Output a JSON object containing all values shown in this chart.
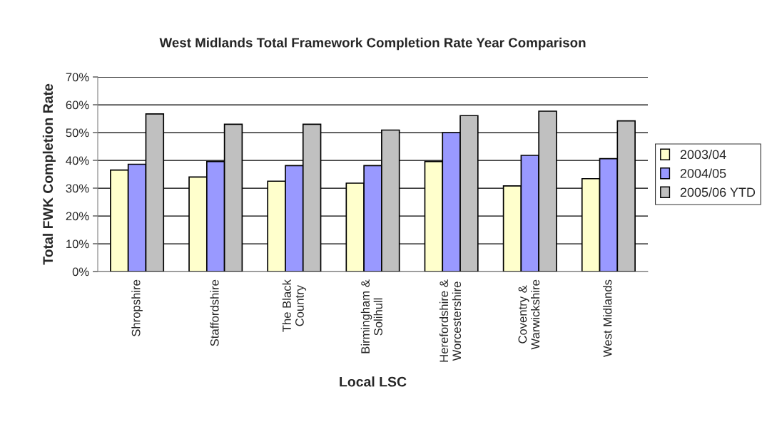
{
  "chart_data": {
    "type": "bar",
    "title": "West Midlands Total Framework Completion Rate Year Comparison",
    "xlabel": "Local LSC",
    "ylabel": "Total FWK Completion Rate",
    "categories": [
      "Shropshire",
      "Staffordshire",
      "The Black\nCountry",
      "Birmingham &\nSolihull",
      "Herefordshire &\nWorcestershire",
      "Coventry &\nWarwickshire",
      "West Midlands"
    ],
    "series": [
      {
        "name": "2003/04",
        "color": "#ffffcc",
        "values": [
          36.5,
          34.0,
          32.5,
          31.8,
          39.6,
          30.8,
          33.4
        ]
      },
      {
        "name": "2004/05",
        "color": "#9999ff",
        "values": [
          38.6,
          39.6,
          38.1,
          38.1,
          50.0,
          41.8,
          40.6
        ]
      },
      {
        "name": "2005/06 YTD",
        "color": "#c0c0c0",
        "values": [
          56.7,
          53.0,
          53.0,
          50.9,
          56.1,
          57.7,
          54.2
        ]
      }
    ],
    "ylim": [
      0,
      70
    ],
    "yticks": [
      {
        "value": 0,
        "label": "0%"
      },
      {
        "value": 10,
        "label": "10%"
      },
      {
        "value": 20,
        "label": "20%"
      },
      {
        "value": 30,
        "label": "30%"
      },
      {
        "value": 40,
        "label": "40%"
      },
      {
        "value": 50,
        "label": "50%"
      },
      {
        "value": 60,
        "label": "60%"
      },
      {
        "value": 70,
        "label": "70%"
      }
    ],
    "grid": "y",
    "legend": "right"
  }
}
